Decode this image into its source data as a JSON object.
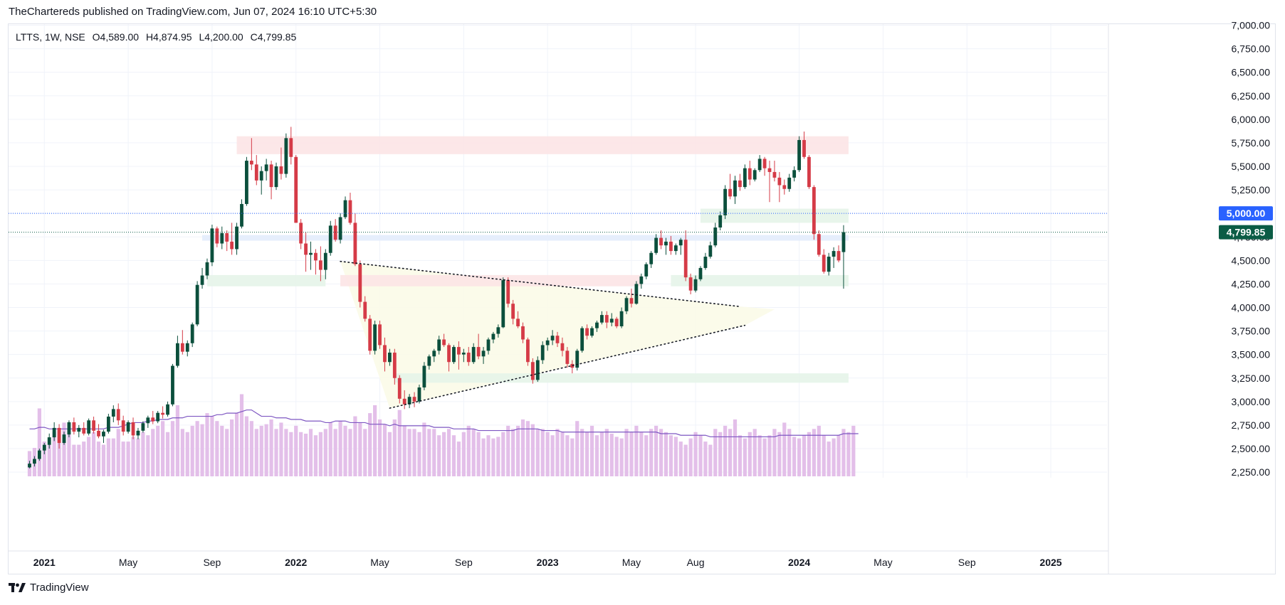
{
  "header": {
    "publisher_line": "TheChartereds published on TradingView.com, Jun 07, 2024 16:10 UTC+5:30"
  },
  "legend": {
    "symbol": "LTTS, 1W, NSE",
    "open": "O4,589.00",
    "high": "H4,874.95",
    "low": "L4,200.00",
    "close": "C4,799.85"
  },
  "footer": {
    "brand": "TradingView",
    "logo_icon": "tradingview-logo-icon"
  },
  "colors": {
    "up": "#0b4f3c",
    "down": "#d53b47",
    "volume": "#e3bfe9",
    "volume_ma": "#7e57c2",
    "price_badge": "#0b5c45",
    "level_badge": "#2962ff",
    "zone_red": "#fce4e6",
    "zone_green": "#e6f4e9",
    "zone_blue": "#e3ecfc",
    "triangle": "#fbfbe8"
  },
  "chart_data": {
    "type": "candlestick",
    "timeframe": "1W",
    "ylim": [
      2200,
      7050
    ],
    "y_ticks": [
      "7,000.00",
      "6,750.00",
      "6,500.00",
      "6,250.00",
      "6,000.00",
      "5,750.00",
      "5,500.00",
      "5,250.00",
      "4,750.00",
      "4,500.00",
      "4,250.00",
      "4,000.00",
      "3,750.00",
      "3,500.00",
      "3,250.00",
      "3,000.00",
      "2,750.00",
      "2,500.00",
      "2,250.00"
    ],
    "y_tick_values": [
      7000,
      6750,
      6500,
      6250,
      6000,
      5750,
      5500,
      5250,
      4750,
      4500,
      4250,
      4000,
      3750,
      3500,
      3250,
      3000,
      2750,
      2500,
      2250
    ],
    "x_ticks": [
      {
        "label": "2021",
        "week": 3,
        "bold": true
      },
      {
        "label": "May",
        "week": 20,
        "bold": false
      },
      {
        "label": "Sep",
        "week": 37,
        "bold": false
      },
      {
        "label": "2022",
        "week": 54,
        "bold": true
      },
      {
        "label": "May",
        "week": 71,
        "bold": false
      },
      {
        "label": "Sep",
        "week": 88,
        "bold": false
      },
      {
        "label": "2023",
        "week": 105,
        "bold": true
      },
      {
        "label": "May",
        "week": 122,
        "bold": false
      },
      {
        "label": "Aug",
        "week": 135,
        "bold": false
      },
      {
        "label": "2024",
        "week": 156,
        "bold": true
      },
      {
        "label": "May",
        "week": 173,
        "bold": false
      },
      {
        "label": "Sep",
        "week": 190,
        "bold": false
      },
      {
        "label": "2025",
        "week": 207,
        "bold": true
      }
    ],
    "candles": [
      [
        2300,
        2370,
        2290,
        2340
      ],
      [
        2340,
        2420,
        2310,
        2390
      ],
      [
        2390,
        2500,
        2370,
        2480
      ],
      [
        2480,
        2560,
        2440,
        2540
      ],
      [
        2540,
        2660,
        2500,
        2620
      ],
      [
        2620,
        2780,
        2580,
        2720
      ],
      [
        2720,
        2760,
        2500,
        2560
      ],
      [
        2560,
        2680,
        2540,
        2650
      ],
      [
        2650,
        2800,
        2620,
        2780
      ],
      [
        2780,
        2830,
        2650,
        2680
      ],
      [
        2680,
        2750,
        2620,
        2720
      ],
      [
        2720,
        2780,
        2640,
        2660
      ],
      [
        2660,
        2820,
        2640,
        2800
      ],
      [
        2800,
        2840,
        2660,
        2690
      ],
      [
        2690,
        2760,
        2610,
        2630
      ],
      [
        2630,
        2700,
        2560,
        2680
      ],
      [
        2680,
        2870,
        2660,
        2840
      ],
      [
        2840,
        2960,
        2780,
        2920
      ],
      [
        2920,
        2980,
        2750,
        2800
      ],
      [
        2800,
        2850,
        2640,
        2680
      ],
      [
        2680,
        2800,
        2660,
        2780
      ],
      [
        2780,
        2830,
        2600,
        2640
      ],
      [
        2640,
        2720,
        2600,
        2690
      ],
      [
        2690,
        2790,
        2670,
        2770
      ],
      [
        2770,
        2850,
        2720,
        2830
      ],
      [
        2830,
        2900,
        2760,
        2790
      ],
      [
        2790,
        2900,
        2770,
        2880
      ],
      [
        2880,
        2950,
        2820,
        2860
      ],
      [
        2860,
        3000,
        2840,
        2970
      ],
      [
        2970,
        3400,
        2950,
        3380
      ],
      [
        3380,
        3700,
        3360,
        3620
      ],
      [
        3620,
        3760,
        3500,
        3530
      ],
      [
        3530,
        3650,
        3480,
        3620
      ],
      [
        3620,
        3840,
        3580,
        3820
      ],
      [
        3820,
        4280,
        3800,
        4240
      ],
      [
        4240,
        4420,
        4200,
        4340
      ],
      [
        4340,
        4520,
        4300,
        4480
      ],
      [
        4480,
        4880,
        4440,
        4840
      ],
      [
        4840,
        4860,
        4640,
        4680
      ],
      [
        4680,
        4860,
        4620,
        4790
      ],
      [
        4790,
        4820,
        4600,
        4700
      ],
      [
        4700,
        4900,
        4560,
        4620
      ],
      [
        4620,
        4900,
        4560,
        4860
      ],
      [
        4860,
        5150,
        4840,
        5100
      ],
      [
        5100,
        5600,
        5080,
        5560
      ],
      [
        5560,
        5800,
        5460,
        5520
      ],
      [
        5520,
        5620,
        5300,
        5350
      ],
      [
        5350,
        5500,
        5200,
        5450
      ],
      [
        5450,
        5580,
        5350,
        5520
      ],
      [
        5520,
        5560,
        5150,
        5280
      ],
      [
        5280,
        5540,
        5250,
        5500
      ],
      [
        5500,
        5700,
        5360,
        5420
      ],
      [
        5420,
        5850,
        5380,
        5800
      ],
      [
        5800,
        5920,
        5520,
        5600
      ],
      [
        5600,
        5620,
        4900,
        4900
      ],
      [
        4900,
        4940,
        4620,
        4680
      ],
      [
        4680,
        4800,
        4380,
        4560
      ],
      [
        4560,
        4700,
        4400,
        4580
      ],
      [
        4580,
        4620,
        4350,
        4500
      ],
      [
        4500,
        4650,
        4280,
        4400
      ],
      [
        4400,
        4620,
        4300,
        4580
      ],
      [
        4580,
        4920,
        4550,
        4870
      ],
      [
        4870,
        4940,
        4700,
        4720
      ],
      [
        4720,
        5000,
        4680,
        4960
      ],
      [
        4960,
        5180,
        4940,
        5140
      ],
      [
        5140,
        5220,
        4880,
        4900
      ],
      [
        4900,
        5000,
        4440,
        4460
      ],
      [
        4460,
        4500,
        4000,
        4060
      ],
      [
        4060,
        4120,
        3850,
        3880
      ],
      [
        3880,
        3920,
        3500,
        3540
      ],
      [
        3540,
        3860,
        3500,
        3820
      ],
      [
        3820,
        3860,
        3560,
        3600
      ],
      [
        3600,
        3680,
        3320,
        3420
      ],
      [
        3420,
        3560,
        3380,
        3520
      ],
      [
        3520,
        3560,
        3180,
        3250
      ],
      [
        3250,
        3280,
        2980,
        3030
      ],
      [
        3030,
        3120,
        2920,
        2970
      ],
      [
        2970,
        3080,
        2930,
        3050
      ],
      [
        3050,
        3100,
        2940,
        3000
      ],
      [
        3000,
        3180,
        2980,
        3150
      ],
      [
        3150,
        3420,
        3120,
        3380
      ],
      [
        3380,
        3500,
        3340,
        3480
      ],
      [
        3480,
        3560,
        3420,
        3540
      ],
      [
        3540,
        3700,
        3500,
        3660
      ],
      [
        3660,
        3720,
        3580,
        3600
      ],
      [
        3600,
        3620,
        3320,
        3420
      ],
      [
        3420,
        3600,
        3400,
        3580
      ],
      [
        3580,
        3640,
        3340,
        3500
      ],
      [
        3500,
        3560,
        3420,
        3520
      ],
      [
        3520,
        3580,
        3380,
        3420
      ],
      [
        3420,
        3620,
        3400,
        3580
      ],
      [
        3580,
        3720,
        3450,
        3480
      ],
      [
        3480,
        3580,
        3400,
        3540
      ],
      [
        3540,
        3680,
        3500,
        3660
      ],
      [
        3660,
        3740,
        3620,
        3720
      ],
      [
        3720,
        3820,
        3680,
        3790
      ],
      [
        3790,
        4320,
        3780,
        4290
      ],
      [
        4290,
        4320,
        4000,
        4040
      ],
      [
        4040,
        4080,
        3820,
        3880
      ],
      [
        3880,
        3960,
        3780,
        3800
      ],
      [
        3800,
        3840,
        3620,
        3660
      ],
      [
        3660,
        3680,
        3380,
        3420
      ],
      [
        3420,
        3460,
        3190,
        3230
      ],
      [
        3230,
        3480,
        3210,
        3440
      ],
      [
        3440,
        3640,
        3400,
        3600
      ],
      [
        3600,
        3680,
        3540,
        3650
      ],
      [
        3650,
        3760,
        3600,
        3700
      ],
      [
        3700,
        3740,
        3580,
        3620
      ],
      [
        3620,
        3680,
        3480,
        3540
      ],
      [
        3540,
        3580,
        3360,
        3400
      ],
      [
        3400,
        3440,
        3300,
        3360
      ],
      [
        3360,
        3560,
        3330,
        3540
      ],
      [
        3540,
        3800,
        3520,
        3780
      ],
      [
        3780,
        3820,
        3660,
        3700
      ],
      [
        3700,
        3800,
        3680,
        3780
      ],
      [
        3780,
        3860,
        3740,
        3840
      ],
      [
        3840,
        3960,
        3820,
        3920
      ],
      [
        3920,
        3960,
        3780,
        3840
      ],
      [
        3840,
        3940,
        3800,
        3880
      ],
      [
        3880,
        3900,
        3780,
        3800
      ],
      [
        3800,
        4000,
        3780,
        3960
      ],
      [
        3960,
        4120,
        3930,
        4100
      ],
      [
        4100,
        4200,
        4000,
        4040
      ],
      [
        4040,
        4280,
        4030,
        4250
      ],
      [
        4250,
        4360,
        4200,
        4330
      ],
      [
        4330,
        4480,
        4300,
        4460
      ],
      [
        4460,
        4600,
        4420,
        4580
      ],
      [
        4580,
        4780,
        4560,
        4740
      ],
      [
        4740,
        4820,
        4620,
        4660
      ],
      [
        4660,
        4740,
        4560,
        4700
      ],
      [
        4700,
        4760,
        4560,
        4600
      ],
      [
        4600,
        4680,
        4560,
        4660
      ],
      [
        4660,
        4740,
        4560,
        4720
      ],
      [
        4720,
        4820,
        4280,
        4320
      ],
      [
        4320,
        4360,
        4140,
        4180
      ],
      [
        4180,
        4340,
        4160,
        4300
      ],
      [
        4300,
        4440,
        4280,
        4420
      ],
      [
        4420,
        4580,
        4400,
        4540
      ],
      [
        4540,
        4700,
        4520,
        4660
      ],
      [
        4660,
        4900,
        4640,
        4850
      ],
      [
        4850,
        5020,
        4820,
        4980
      ],
      [
        4980,
        5300,
        4940,
        5260
      ],
      [
        5260,
        5420,
        5150,
        5180
      ],
      [
        5180,
        5400,
        5100,
        5350
      ],
      [
        5350,
        5420,
        5240,
        5280
      ],
      [
        5280,
        5520,
        5260,
        5480
      ],
      [
        5480,
        5560,
        5300,
        5360
      ],
      [
        5360,
        5480,
        5340,
        5460
      ],
      [
        5460,
        5620,
        5440,
        5580
      ],
      [
        5580,
        5600,
        5400,
        5480
      ],
      [
        5480,
        5560,
        5120,
        5440
      ],
      [
        5440,
        5560,
        5340,
        5380
      ],
      [
        5380,
        5440,
        5120,
        5300
      ],
      [
        5300,
        5360,
        5200,
        5260
      ],
      [
        5260,
        5420,
        5230,
        5380
      ],
      [
        5380,
        5500,
        5340,
        5460
      ],
      [
        5460,
        5820,
        5440,
        5780
      ],
      [
        5780,
        5870,
        5580,
        5600
      ],
      [
        5600,
        5620,
        5260,
        5280
      ],
      [
        5280,
        5300,
        4720,
        4780
      ],
      [
        4780,
        4820,
        4540,
        4560
      ],
      [
        4560,
        4620,
        4360,
        4380
      ],
      [
        4380,
        4580,
        4340,
        4540
      ],
      [
        4540,
        4640,
        4420,
        4600
      ],
      [
        4600,
        4660,
        4480,
        4500
      ],
      [
        4589,
        4874.95,
        4200,
        4799.85
      ]
    ],
    "volume": [
      16,
      18,
      43,
      22,
      20,
      28,
      30,
      34,
      30,
      20,
      20,
      22,
      25,
      28,
      22,
      20,
      24,
      24,
      30,
      22,
      22,
      25,
      24,
      28,
      26,
      30,
      32,
      35,
      28,
      35,
      45,
      30,
      28,
      32,
      35,
      33,
      40,
      38,
      35,
      32,
      30,
      36,
      40,
      52,
      38,
      35,
      30,
      32,
      33,
      36,
      30,
      34,
      30,
      28,
      32,
      28,
      27,
      30,
      26,
      28,
      30,
      34,
      30,
      35,
      32,
      30,
      38,
      34,
      30,
      40,
      45,
      36,
      33,
      28,
      36,
      42,
      32,
      30,
      30,
      28,
      34,
      30,
      30,
      26,
      28,
      30,
      26,
      22,
      28,
      32,
      30,
      28,
      24,
      26,
      24,
      25,
      28,
      32,
      30,
      32,
      36,
      35,
      33,
      30,
      30,
      28,
      26,
      30,
      28,
      26,
      24,
      35,
      30,
      28,
      32,
      26,
      28,
      30,
      27,
      25,
      24,
      30,
      28,
      32,
      28,
      26,
      30,
      32,
      30,
      28,
      26,
      25,
      22,
      20,
      24,
      28,
      26,
      22,
      20,
      30,
      28,
      32,
      30,
      36,
      26,
      24,
      28,
      30,
      26,
      24,
      26,
      30,
      28,
      34,
      30,
      25,
      24,
      26,
      28,
      30,
      32,
      26,
      22,
      24,
      26,
      30,
      28,
      32
    ],
    "volume_ma": [
      30,
      30,
      31,
      31,
      30,
      30,
      30,
      30,
      30,
      30,
      30,
      30,
      30,
      30,
      30,
      30,
      31,
      31,
      31,
      32,
      33,
      34,
      34,
      34,
      35,
      35,
      36,
      36,
      36,
      37,
      37,
      37,
      38,
      38,
      38,
      38,
      38,
      38,
      39,
      39,
      40,
      40,
      40,
      41,
      42,
      42,
      40,
      38,
      38,
      38,
      37,
      37,
      37,
      36,
      36,
      36,
      35,
      35,
      35,
      35,
      34,
      34,
      35,
      35,
      35,
      34,
      34,
      34,
      34,
      33,
      33,
      33,
      33,
      32,
      33,
      32,
      32,
      32,
      32,
      32,
      32,
      32,
      31,
      31,
      31,
      31,
      30,
      30,
      30,
      30,
      30,
      29,
      29,
      29,
      29,
      29,
      29,
      29,
      29,
      30,
      30,
      30,
      30,
      30,
      29,
      29,
      29,
      29,
      28,
      28,
      28,
      28,
      28,
      28,
      28,
      28,
      28,
      28,
      28,
      28,
      28,
      28,
      28,
      28,
      28,
      28,
      28,
      28,
      27,
      27,
      27,
      27,
      26,
      26,
      26,
      26,
      26,
      26,
      25,
      25,
      25,
      25,
      25,
      25,
      25,
      25,
      25,
      25,
      25,
      25,
      25,
      25,
      26,
      26,
      26,
      26,
      26,
      26,
      26,
      26,
      26,
      26,
      26,
      26,
      26,
      27,
      27,
      27,
      27
    ],
    "zones": [
      {
        "kind": "resistance",
        "w0": 42,
        "w1": 166,
        "lo": 5630,
        "hi": 5820,
        "color": "red"
      },
      {
        "kind": "resistance",
        "w0": 63,
        "w1": 124,
        "lo": 4225,
        "hi": 4345,
        "color": "red"
      },
      {
        "kind": "support",
        "w0": 36,
        "w1": 60,
        "lo": 4225,
        "hi": 4345,
        "color": "green"
      },
      {
        "kind": "support",
        "w0": 130,
        "w1": 166,
        "lo": 4225,
        "hi": 4345,
        "color": "green"
      },
      {
        "kind": "support",
        "w0": 136,
        "w1": 166,
        "lo": 4900,
        "hi": 5050,
        "color": "green"
      },
      {
        "kind": "support",
        "w0": 74,
        "w1": 166,
        "lo": 3200,
        "hi": 3300,
        "color": "green"
      },
      {
        "kind": "level",
        "w0": 35,
        "w1": 166,
        "lo": 4710,
        "hi": 4770,
        "color": "blue"
      }
    ],
    "trendlines": [
      {
        "w0": 63,
        "p0": 4490,
        "w1": 144,
        "p1": 4010,
        "style": "dotted"
      },
      {
        "w0": 73,
        "p0": 2930,
        "w1": 145,
        "p1": 3810,
        "style": "dotted"
      }
    ],
    "horizontal_lines": [
      {
        "price": 5000,
        "label": "5,000.00",
        "badge": "blue"
      },
      {
        "price": 4799.85,
        "label": "4,799.85",
        "badge": "green"
      }
    ]
  }
}
